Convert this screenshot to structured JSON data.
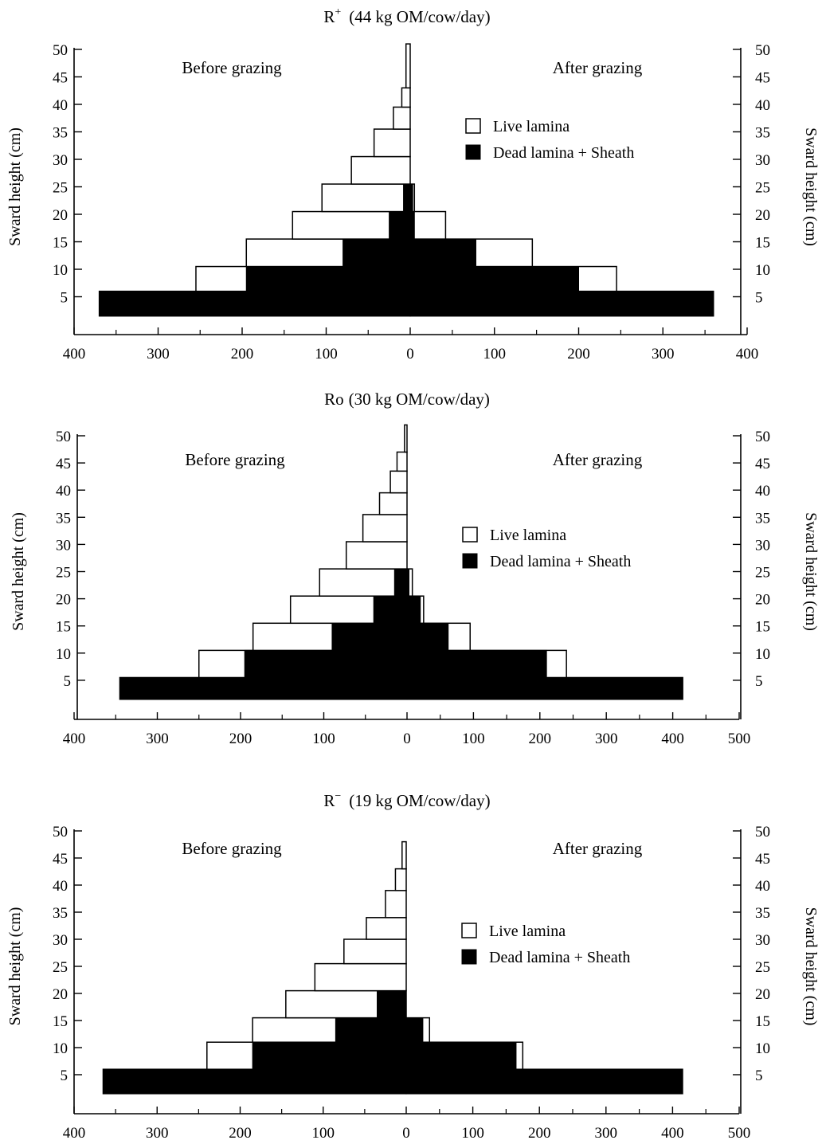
{
  "chart_data": [
    {
      "type": "bar",
      "title": "(44 kg OM/cow/day)",
      "title_prefix": "R",
      "title_superscript": "+",
      "left_label": "Before grazing",
      "right_label": "After grazing",
      "ylabel": "Sward height (cm)",
      "ylim": [
        0,
        50
      ],
      "y_ticks": [
        "5",
        "10",
        "15",
        "20",
        "25",
        "30",
        "35",
        "40",
        "45",
        "50"
      ],
      "x_left_ticks": [
        "400",
        "300",
        "200",
        "100",
        "0"
      ],
      "x_right_ticks": [
        "100",
        "200",
        "300",
        "400"
      ],
      "legend": {
        "live": "Live lamina",
        "dead": "Dead lamina + Sheath"
      },
      "layers": [
        {
          "y_low": 1.5,
          "y_high": 6,
          "before_total": 370,
          "before_dead": 370,
          "after_total": 360,
          "after_dead": 360
        },
        {
          "y_low": 6,
          "y_high": 10.5,
          "before_total": 255,
          "before_dead": 195,
          "after_total": 245,
          "after_dead": 200
        },
        {
          "y_low": 10.5,
          "y_high": 15.5,
          "before_total": 195,
          "before_dead": 80,
          "after_total": 145,
          "after_dead": 78
        },
        {
          "y_low": 15.5,
          "y_high": 20.5,
          "before_total": 140,
          "before_dead": 25,
          "after_total": 42,
          "after_dead": 5
        },
        {
          "y_low": 20.5,
          "y_high": 25.5,
          "before_total": 105,
          "before_dead": 8,
          "after_total": 5,
          "after_dead": 3
        },
        {
          "y_low": 25.5,
          "y_high": 30.5,
          "before_total": 70,
          "before_dead": 0,
          "after_total": 0,
          "after_dead": 0
        },
        {
          "y_low": 30.5,
          "y_high": 35.5,
          "before_total": 43,
          "before_dead": 0,
          "after_total": 0,
          "after_dead": 0
        },
        {
          "y_low": 35.5,
          "y_high": 39.5,
          "before_total": 20,
          "before_dead": 0,
          "after_total": 0,
          "after_dead": 0
        },
        {
          "y_low": 39.5,
          "y_high": 43,
          "before_total": 10,
          "before_dead": 0,
          "after_total": 0,
          "after_dead": 0
        },
        {
          "y_low": 43,
          "y_high": 51,
          "before_total": 5,
          "before_dead": 0,
          "after_total": 0,
          "after_dead": 0
        }
      ]
    },
    {
      "type": "bar",
      "title": "(30 kg OM/cow/day)",
      "title_prefix": "Ro",
      "title_superscript": "",
      "left_label": "Before grazing",
      "right_label": "After grazing",
      "ylabel": "Sward height (cm)",
      "ylim": [
        0,
        50
      ],
      "y_ticks": [
        "5",
        "10",
        "15",
        "20",
        "25",
        "30",
        "35",
        "40",
        "45",
        "50"
      ],
      "x_left_ticks": [
        "400",
        "300",
        "200",
        "100",
        "0"
      ],
      "x_right_ticks": [
        "100",
        "200",
        "300",
        "400",
        "500"
      ],
      "legend": {
        "live": "Live lamina",
        "dead": "Dead lamina + Sheath"
      },
      "layers": [
        {
          "y_low": 1.5,
          "y_high": 5.5,
          "before_total": 345,
          "before_dead": 345,
          "after_total": 415,
          "after_dead": 415
        },
        {
          "y_low": 5.5,
          "y_high": 10.5,
          "before_total": 250,
          "before_dead": 195,
          "after_total": 240,
          "after_dead": 210
        },
        {
          "y_low": 10.5,
          "y_high": 15.5,
          "before_total": 185,
          "before_dead": 90,
          "after_total": 95,
          "after_dead": 62
        },
        {
          "y_low": 15.5,
          "y_high": 20.5,
          "before_total": 140,
          "before_dead": 40,
          "after_total": 25,
          "after_dead": 20
        },
        {
          "y_low": 20.5,
          "y_high": 25.5,
          "before_total": 105,
          "before_dead": 15,
          "after_total": 8,
          "after_dead": 3
        },
        {
          "y_low": 25.5,
          "y_high": 30.5,
          "before_total": 73,
          "before_dead": 0,
          "after_total": 0,
          "after_dead": 0
        },
        {
          "y_low": 30.5,
          "y_high": 35.5,
          "before_total": 53,
          "before_dead": 0,
          "after_total": 0,
          "after_dead": 0
        },
        {
          "y_low": 35.5,
          "y_high": 39.5,
          "before_total": 33,
          "before_dead": 0,
          "after_total": 0,
          "after_dead": 0
        },
        {
          "y_low": 39.5,
          "y_high": 43.5,
          "before_total": 20,
          "before_dead": 0,
          "after_total": 0,
          "after_dead": 0
        },
        {
          "y_low": 43.5,
          "y_high": 47,
          "before_total": 12,
          "before_dead": 0,
          "after_total": 0,
          "after_dead": 0
        },
        {
          "y_low": 47,
          "y_high": 52,
          "before_total": 3,
          "before_dead": 0,
          "after_total": 0,
          "after_dead": 0
        }
      ]
    },
    {
      "type": "bar",
      "title": "(19 kg OM/cow/day)",
      "title_prefix": "R",
      "title_superscript": "−",
      "left_label": "Before grazing",
      "right_label": "After grazing",
      "ylabel": "Sward height (cm)",
      "ylim": [
        0,
        50
      ],
      "y_ticks": [
        "5",
        "10",
        "15",
        "20",
        "25",
        "30",
        "35",
        "40",
        "45",
        "50"
      ],
      "x_left_ticks": [
        "400",
        "300",
        "200",
        "100",
        "0"
      ],
      "x_right_ticks": [
        "100",
        "200",
        "300",
        "400",
        "500"
      ],
      "legend": {
        "live": "Live lamina",
        "dead": "Dead lamina + Sheath"
      },
      "layers": [
        {
          "y_low": 1.5,
          "y_high": 6,
          "before_total": 365,
          "before_dead": 365,
          "after_total": 415,
          "after_dead": 415
        },
        {
          "y_low": 6,
          "y_high": 11,
          "before_total": 240,
          "before_dead": 185,
          "after_total": 175,
          "after_dead": 165
        },
        {
          "y_low": 11,
          "y_high": 15.5,
          "before_total": 185,
          "before_dead": 85,
          "after_total": 35,
          "after_dead": 25
        },
        {
          "y_low": 15.5,
          "y_high": 20.5,
          "before_total": 145,
          "before_dead": 35,
          "after_total": 0,
          "after_dead": 0
        },
        {
          "y_low": 20.5,
          "y_high": 25.5,
          "before_total": 110,
          "before_dead": 0,
          "after_total": 0,
          "after_dead": 0
        },
        {
          "y_low": 25.5,
          "y_high": 30,
          "before_total": 75,
          "before_dead": 0,
          "after_total": 0,
          "after_dead": 0
        },
        {
          "y_low": 30,
          "y_high": 34,
          "before_total": 48,
          "before_dead": 0,
          "after_total": 0,
          "after_dead": 0
        },
        {
          "y_low": 34,
          "y_high": 39,
          "before_total": 25,
          "before_dead": 0,
          "after_total": 0,
          "after_dead": 0
        },
        {
          "y_low": 39,
          "y_high": 43,
          "before_total": 13,
          "before_dead": 0,
          "after_total": 0,
          "after_dead": 0
        },
        {
          "y_low": 43,
          "y_high": 48,
          "before_total": 5,
          "before_dead": 0,
          "after_total": 0,
          "after_dead": 0
        }
      ]
    }
  ]
}
